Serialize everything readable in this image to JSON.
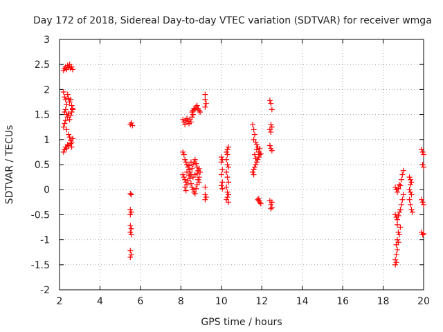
{
  "chart_data": {
    "type": "scatter",
    "title": "Day 172 of 2018, Sidereal Day-to-day VTEC variation (SDTVAR) for receiver wmga",
    "xlabel": "GPS time / hours",
    "ylabel": "SDTVAR / TECUs",
    "xlim": [
      2,
      20
    ],
    "ylim": [
      -2,
      3
    ],
    "xticks": [
      2,
      4,
      6,
      8,
      10,
      12,
      14,
      16,
      18,
      20
    ],
    "yticks": [
      -2,
      -1.5,
      -1,
      -0.5,
      0,
      0.5,
      1,
      1.5,
      2,
      2.5,
      3
    ],
    "grid": true,
    "marker": "+",
    "color": "#ff0000",
    "series": [
      {
        "name": "SDTVAR",
        "points": [
          [
            2.2,
            2.38
          ],
          [
            2.25,
            2.42
          ],
          [
            2.3,
            2.45
          ],
          [
            2.35,
            2.4
          ],
          [
            2.4,
            2.48
          ],
          [
            2.45,
            2.44
          ],
          [
            2.5,
            2.5
          ],
          [
            2.55,
            2.42
          ],
          [
            2.6,
            2.45
          ],
          [
            2.65,
            2.4
          ],
          [
            2.2,
            1.95
          ],
          [
            2.25,
            1.85
          ],
          [
            2.3,
            1.8
          ],
          [
            2.35,
            1.7
          ],
          [
            2.4,
            1.9
          ],
          [
            2.45,
            1.82
          ],
          [
            2.5,
            1.75
          ],
          [
            2.55,
            1.8
          ],
          [
            2.6,
            1.68
          ],
          [
            2.65,
            1.6
          ],
          [
            2.25,
            1.55
          ],
          [
            2.3,
            1.6
          ],
          [
            2.35,
            1.5
          ],
          [
            2.4,
            1.45
          ],
          [
            2.45,
            1.52
          ],
          [
            2.5,
            1.4
          ],
          [
            2.55,
            1.48
          ],
          [
            2.6,
            1.55
          ],
          [
            2.65,
            1.62
          ],
          [
            2.3,
            1.38
          ],
          [
            2.2,
            1.25
          ],
          [
            2.25,
            1.32
          ],
          [
            2.35,
            1.2
          ],
          [
            2.45,
            1.1
          ],
          [
            2.5,
            1.05
          ],
          [
            2.55,
            0.98
          ],
          [
            2.6,
            0.95
          ],
          [
            2.65,
            1.02
          ],
          [
            2.2,
            0.75
          ],
          [
            2.25,
            0.8
          ],
          [
            2.3,
            0.85
          ],
          [
            2.35,
            0.82
          ],
          [
            2.4,
            0.9
          ],
          [
            2.45,
            0.88
          ],
          [
            2.55,
            0.92
          ],
          [
            2.6,
            0.85
          ],
          [
            5.5,
            1.3
          ],
          [
            5.55,
            1.33
          ],
          [
            5.6,
            1.28
          ],
          [
            5.5,
            -0.08
          ],
          [
            5.55,
            -0.1
          ],
          [
            5.5,
            -0.4
          ],
          [
            5.55,
            -0.45
          ],
          [
            5.5,
            -0.5
          ],
          [
            5.5,
            -0.72
          ],
          [
            5.55,
            -0.78
          ],
          [
            5.5,
            -0.85
          ],
          [
            5.55,
            -0.9
          ],
          [
            5.5,
            -1.22
          ],
          [
            5.55,
            -1.3
          ],
          [
            5.5,
            -1.35
          ],
          [
            8.1,
            1.4
          ],
          [
            8.15,
            1.35
          ],
          [
            8.2,
            1.3
          ],
          [
            8.25,
            1.38
          ],
          [
            8.3,
            1.42
          ],
          [
            8.35,
            1.36
          ],
          [
            8.4,
            1.32
          ],
          [
            8.45,
            1.4
          ],
          [
            8.5,
            1.35
          ],
          [
            8.55,
            1.45
          ],
          [
            8.6,
            1.5
          ],
          [
            8.55,
            1.55
          ],
          [
            8.6,
            1.58
          ],
          [
            8.65,
            1.62
          ],
          [
            8.7,
            1.6
          ],
          [
            8.75,
            1.65
          ],
          [
            8.8,
            1.68
          ],
          [
            8.85,
            1.62
          ],
          [
            8.9,
            1.58
          ],
          [
            8.95,
            1.55
          ],
          [
            9.2,
            1.9
          ],
          [
            9.2,
            1.8
          ],
          [
            9.25,
            1.72
          ],
          [
            9.2,
            1.65
          ],
          [
            8.1,
            0.75
          ],
          [
            8.15,
            0.7
          ],
          [
            8.2,
            0.6
          ],
          [
            8.25,
            0.55
          ],
          [
            8.3,
            0.5
          ],
          [
            8.35,
            0.45
          ],
          [
            8.4,
            0.4
          ],
          [
            8.45,
            0.35
          ],
          [
            8.5,
            0.3
          ],
          [
            8.55,
            0.42
          ],
          [
            8.6,
            0.5
          ],
          [
            8.65,
            0.55
          ],
          [
            8.7,
            0.6
          ],
          [
            8.75,
            0.52
          ],
          [
            8.8,
            0.45
          ],
          [
            8.85,
            0.38
          ],
          [
            8.9,
            0.42
          ],
          [
            8.95,
            0.35
          ],
          [
            8.1,
            0.3
          ],
          [
            8.15,
            0.25
          ],
          [
            8.2,
            0.2
          ],
          [
            8.25,
            0.15
          ],
          [
            8.3,
            0.1
          ],
          [
            8.35,
            0.18
          ],
          [
            8.4,
            0.28
          ],
          [
            8.45,
            0.22
          ],
          [
            8.5,
            0.12
          ],
          [
            8.55,
            0.05
          ],
          [
            8.6,
            0.0
          ],
          [
            8.65,
            -0.05
          ],
          [
            8.7,
            -0.08
          ],
          [
            8.75,
            0.02
          ],
          [
            8.8,
            0.1
          ],
          [
            8.85,
            0.2
          ],
          [
            8.9,
            0.15
          ],
          [
            8.2,
            0.05
          ],
          [
            8.25,
            -0.02
          ],
          [
            8.3,
            0.35
          ],
          [
            8.4,
            0.48
          ],
          [
            8.5,
            0.55
          ],
          [
            8.6,
            0.25
          ],
          [
            8.7,
            0.3
          ],
          [
            8.8,
            0.32
          ],
          [
            8.9,
            0.25
          ],
          [
            9.2,
            0.05
          ],
          [
            9.2,
            -0.1
          ],
          [
            9.25,
            -0.15
          ],
          [
            9.2,
            -0.2
          ],
          [
            10.0,
            0.65
          ],
          [
            10.05,
            0.6
          ],
          [
            10.0,
            0.55
          ],
          [
            10.05,
            0.4
          ],
          [
            10.0,
            0.3
          ],
          [
            10.05,
            0.15
          ],
          [
            10.0,
            0.08
          ],
          [
            10.05,
            0.02
          ],
          [
            10.25,
            0.75
          ],
          [
            10.3,
            0.8
          ],
          [
            10.35,
            0.85
          ],
          [
            10.3,
            0.7
          ],
          [
            10.25,
            0.6
          ],
          [
            10.3,
            0.5
          ],
          [
            10.35,
            0.45
          ],
          [
            10.25,
            0.35
          ],
          [
            10.3,
            0.25
          ],
          [
            10.35,
            0.15
          ],
          [
            10.25,
            0.05
          ],
          [
            10.3,
            -0.05
          ],
          [
            10.35,
            -0.1
          ],
          [
            10.3,
            -0.15
          ],
          [
            10.25,
            -0.2
          ],
          [
            10.35,
            -0.25
          ],
          [
            11.55,
            1.3
          ],
          [
            11.6,
            1.2
          ],
          [
            11.65,
            1.1
          ],
          [
            11.6,
            1.0
          ],
          [
            11.7,
            0.95
          ],
          [
            11.75,
            0.9
          ],
          [
            11.8,
            0.85
          ],
          [
            11.75,
            0.8
          ],
          [
            11.85,
            0.75
          ],
          [
            11.9,
            0.7
          ],
          [
            11.85,
            0.65
          ],
          [
            11.8,
            0.6
          ],
          [
            11.75,
            0.55
          ],
          [
            11.7,
            0.5
          ],
          [
            11.65,
            0.45
          ],
          [
            11.6,
            0.4
          ],
          [
            11.55,
            0.35
          ],
          [
            11.6,
            0.3
          ],
          [
            11.7,
            0.62
          ],
          [
            11.9,
            0.82
          ],
          [
            11.95,
            0.72
          ],
          [
            11.65,
            0.7
          ],
          [
            11.8,
            -0.2
          ],
          [
            11.85,
            -0.22
          ],
          [
            11.9,
            -0.25
          ],
          [
            11.95,
            -0.28
          ],
          [
            11.85,
            -0.18
          ],
          [
            12.4,
            1.78
          ],
          [
            12.45,
            1.72
          ],
          [
            12.5,
            1.6
          ],
          [
            12.45,
            1.3
          ],
          [
            12.5,
            1.25
          ],
          [
            12.4,
            1.2
          ],
          [
            12.45,
            1.15
          ],
          [
            12.4,
            0.88
          ],
          [
            12.45,
            0.82
          ],
          [
            12.5,
            0.78
          ],
          [
            12.4,
            -0.22
          ],
          [
            12.45,
            -0.3
          ],
          [
            12.5,
            -0.35
          ],
          [
            12.45,
            -0.38
          ],
          [
            12.5,
            -0.25
          ],
          [
            18.6,
            0.05
          ],
          [
            18.65,
            0.0
          ],
          [
            18.7,
            -0.05
          ],
          [
            18.75,
            0.02
          ],
          [
            18.8,
            0.1
          ],
          [
            18.85,
            0.08
          ],
          [
            18.9,
            0.2
          ],
          [
            18.95,
            0.3
          ],
          [
            19.0,
            0.38
          ],
          [
            18.6,
            -0.5
          ],
          [
            18.65,
            -0.55
          ],
          [
            18.7,
            -0.6
          ],
          [
            18.75,
            -0.52
          ],
          [
            18.8,
            -0.45
          ],
          [
            18.85,
            -0.4
          ],
          [
            18.9,
            -0.3
          ],
          [
            18.95,
            -0.2
          ],
          [
            19.0,
            -0.1
          ],
          [
            18.7,
            -0.7
          ],
          [
            18.75,
            -0.85
          ],
          [
            18.7,
            -1.0
          ],
          [
            18.65,
            -1.1
          ],
          [
            18.7,
            -1.2
          ],
          [
            18.65,
            -1.3
          ],
          [
            18.6,
            -1.4
          ],
          [
            18.6,
            -1.5
          ],
          [
            18.65,
            -1.45
          ],
          [
            18.75,
            -1.05
          ],
          [
            18.8,
            -0.9
          ],
          [
            18.85,
            -0.75
          ],
          [
            19.3,
            0.25
          ],
          [
            19.35,
            0.2
          ],
          [
            19.4,
            0.15
          ],
          [
            19.35,
            0.1
          ],
          [
            19.3,
            0.0
          ],
          [
            19.35,
            -0.05
          ],
          [
            19.4,
            -0.1
          ],
          [
            19.3,
            -0.2
          ],
          [
            19.35,
            -0.3
          ],
          [
            19.4,
            -0.4
          ],
          [
            19.45,
            -0.45
          ],
          [
            19.9,
            0.8
          ],
          [
            19.95,
            0.75
          ],
          [
            20.0,
            0.7
          ],
          [
            19.95,
            0.5
          ],
          [
            20.0,
            0.45
          ],
          [
            19.9,
            -0.2
          ],
          [
            19.95,
            -0.25
          ],
          [
            20.0,
            -0.3
          ],
          [
            19.9,
            -0.85
          ],
          [
            19.95,
            -0.9
          ],
          [
            20.0,
            -0.88
          ]
        ]
      }
    ]
  }
}
